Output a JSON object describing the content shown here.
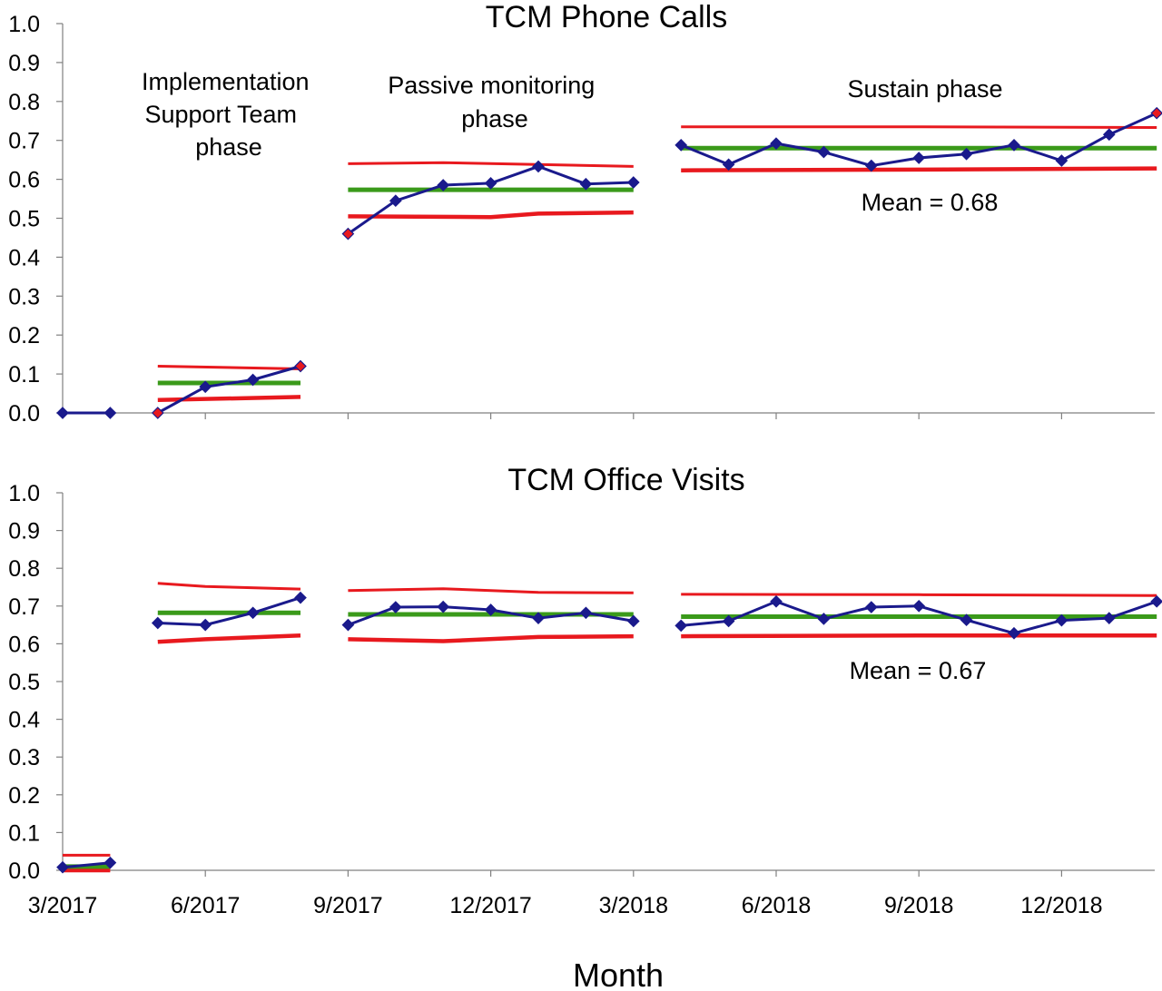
{
  "chart_data": [
    {
      "type": "line",
      "title": "TCM Phone Calls",
      "ylim": [
        0,
        1
      ],
      "yticks": [
        "0.0",
        "0.1",
        "0.2",
        "0.3",
        "0.4",
        "0.5",
        "0.6",
        "0.7",
        "0.8",
        "0.9",
        "1.0"
      ],
      "grid": false,
      "annotations": [
        {
          "id": "implementation",
          "lines": [
            "Implementation",
            "Support Team",
            "phase"
          ]
        },
        {
          "id": "passive",
          "lines": [
            "Passive monitoring",
            "phase"
          ]
        },
        {
          "id": "sustain",
          "lines": [
            "Sustain phase"
          ]
        },
        {
          "id": "mean",
          "lines": [
            "Mean  = 0.68"
          ]
        }
      ],
      "colors": {
        "data": "#1a1a8c",
        "mean": "#3a9a1a",
        "limit": "#e8191e",
        "special_marker": "#e8191e"
      },
      "phases": [
        {
          "points": [
            {
              "x": 0,
              "y": 0.0
            },
            {
              "x": 1,
              "y": 0.0
            }
          ],
          "special": [],
          "mean": null,
          "ucl": null,
          "lcl": null
        },
        {
          "points": [
            {
              "x": 2,
              "y": 0.0
            },
            {
              "x": 3,
              "y": 0.067
            },
            {
              "x": 4,
              "y": 0.085
            },
            {
              "x": 5,
              "y": 0.12
            }
          ],
          "special": [
            2,
            5
          ],
          "mean": 0.077,
          "ucl": [
            {
              "x": 2,
              "y": 0.12
            },
            {
              "x": 5,
              "y": 0.113
            }
          ],
          "lcl": [
            {
              "x": 2,
              "y": 0.033
            },
            {
              "x": 5,
              "y": 0.041
            }
          ]
        },
        {
          "points": [
            {
              "x": 6,
              "y": 0.46
            },
            {
              "x": 7,
              "y": 0.545
            },
            {
              "x": 8,
              "y": 0.585
            },
            {
              "x": 9,
              "y": 0.59
            },
            {
              "x": 10,
              "y": 0.633
            },
            {
              "x": 11,
              "y": 0.588
            },
            {
              "x": 12,
              "y": 0.592
            }
          ],
          "special": [
            6
          ],
          "mean": 0.573,
          "ucl": [
            {
              "x": 6,
              "y": 0.64
            },
            {
              "x": 8,
              "y": 0.643
            },
            {
              "x": 12,
              "y": 0.633
            }
          ],
          "lcl": [
            {
              "x": 6,
              "y": 0.505
            },
            {
              "x": 9,
              "y": 0.503
            },
            {
              "x": 10,
              "y": 0.512
            },
            {
              "x": 12,
              "y": 0.515
            }
          ]
        },
        {
          "points": [
            {
              "x": 13,
              "y": 0.688
            },
            {
              "x": 14,
              "y": 0.638
            },
            {
              "x": 15,
              "y": 0.692
            },
            {
              "x": 16,
              "y": 0.67
            },
            {
              "x": 17,
              "y": 0.635
            },
            {
              "x": 18,
              "y": 0.655
            },
            {
              "x": 19,
              "y": 0.665
            },
            {
              "x": 20,
              "y": 0.688
            },
            {
              "x": 21,
              "y": 0.648
            },
            {
              "x": 22,
              "y": 0.715
            },
            {
              "x": 23,
              "y": 0.77
            }
          ],
          "special": [
            23
          ],
          "mean": 0.68,
          "ucl": [
            {
              "x": 13,
              "y": 0.735
            },
            {
              "x": 18,
              "y": 0.735
            },
            {
              "x": 23,
              "y": 0.733
            }
          ],
          "lcl": [
            {
              "x": 13,
              "y": 0.623
            },
            {
              "x": 18,
              "y": 0.625
            },
            {
              "x": 23,
              "y": 0.628
            }
          ]
        }
      ]
    },
    {
      "type": "line",
      "title": "TCM Office Visits",
      "ylim": [
        0,
        1
      ],
      "yticks": [
        "0.0",
        "0.1",
        "0.2",
        "0.3",
        "0.4",
        "0.5",
        "0.6",
        "0.7",
        "0.8",
        "0.9",
        "1.0"
      ],
      "xticks": [
        {
          "x": 0,
          "label": "3/2017"
        },
        {
          "x": 3,
          "label": "6/2017"
        },
        {
          "x": 6,
          "label": "9/2017"
        },
        {
          "x": 9,
          "label": "12/2017"
        },
        {
          "x": 12,
          "label": "3/2018"
        },
        {
          "x": 15,
          "label": "6/2018"
        },
        {
          "x": 18,
          "label": "9/2018"
        },
        {
          "x": 21,
          "label": "12/2018"
        }
      ],
      "xlabel": "Month",
      "grid": false,
      "annotations": [
        {
          "id": "mean",
          "lines": [
            "Mean  = 0.67"
          ]
        }
      ],
      "colors": {
        "data": "#1a1a8c",
        "mean": "#3a9a1a",
        "limit": "#e8191e",
        "special_marker": "#e8191e"
      },
      "phases": [
        {
          "points": [
            {
              "x": 0,
              "y": 0.008
            },
            {
              "x": 1,
              "y": 0.02
            }
          ],
          "special": [],
          "mean": 0.01,
          "ucl": [
            {
              "x": 0,
              "y": 0.04
            },
            {
              "x": 1,
              "y": 0.04
            }
          ],
          "lcl": [
            {
              "x": 0,
              "y": 0.0
            },
            {
              "x": 1,
              "y": 0.0
            }
          ]
        },
        {
          "points": [
            {
              "x": 2,
              "y": 0.655
            },
            {
              "x": 3,
              "y": 0.65
            },
            {
              "x": 4,
              "y": 0.682
            },
            {
              "x": 5,
              "y": 0.722
            }
          ],
          "special": [],
          "mean": 0.682,
          "ucl": [
            {
              "x": 2,
              "y": 0.76
            },
            {
              "x": 3,
              "y": 0.752
            },
            {
              "x": 5,
              "y": 0.745
            }
          ],
          "lcl": [
            {
              "x": 2,
              "y": 0.605
            },
            {
              "x": 3,
              "y": 0.612
            },
            {
              "x": 5,
              "y": 0.622
            }
          ]
        },
        {
          "points": [
            {
              "x": 6,
              "y": 0.65
            },
            {
              "x": 7,
              "y": 0.697
            },
            {
              "x": 8,
              "y": 0.698
            },
            {
              "x": 9,
              "y": 0.69
            },
            {
              "x": 10,
              "y": 0.668
            },
            {
              "x": 11,
              "y": 0.682
            },
            {
              "x": 12,
              "y": 0.66
            }
          ],
          "special": [],
          "mean": 0.678,
          "ucl": [
            {
              "x": 6,
              "y": 0.741
            },
            {
              "x": 8,
              "y": 0.746
            },
            {
              "x": 10,
              "y": 0.736
            },
            {
              "x": 12,
              "y": 0.735
            }
          ],
          "lcl": [
            {
              "x": 6,
              "y": 0.612
            },
            {
              "x": 8,
              "y": 0.607
            },
            {
              "x": 10,
              "y": 0.618
            },
            {
              "x": 12,
              "y": 0.62
            }
          ]
        },
        {
          "points": [
            {
              "x": 13,
              "y": 0.648
            },
            {
              "x": 14,
              "y": 0.66
            },
            {
              "x": 15,
              "y": 0.712
            },
            {
              "x": 16,
              "y": 0.666
            },
            {
              "x": 17,
              "y": 0.697
            },
            {
              "x": 18,
              "y": 0.7
            },
            {
              "x": 19,
              "y": 0.663
            },
            {
              "x": 20,
              "y": 0.628
            },
            {
              "x": 21,
              "y": 0.662
            },
            {
              "x": 22,
              "y": 0.668
            },
            {
              "x": 23,
              "y": 0.712
            }
          ],
          "special": [],
          "mean": 0.672,
          "ucl": [
            {
              "x": 13,
              "y": 0.731
            },
            {
              "x": 18,
              "y": 0.73
            },
            {
              "x": 23,
              "y": 0.728
            }
          ],
          "lcl": [
            {
              "x": 13,
              "y": 0.62
            },
            {
              "x": 18,
              "y": 0.622
            },
            {
              "x": 23,
              "y": 0.622
            }
          ]
        }
      ]
    }
  ]
}
